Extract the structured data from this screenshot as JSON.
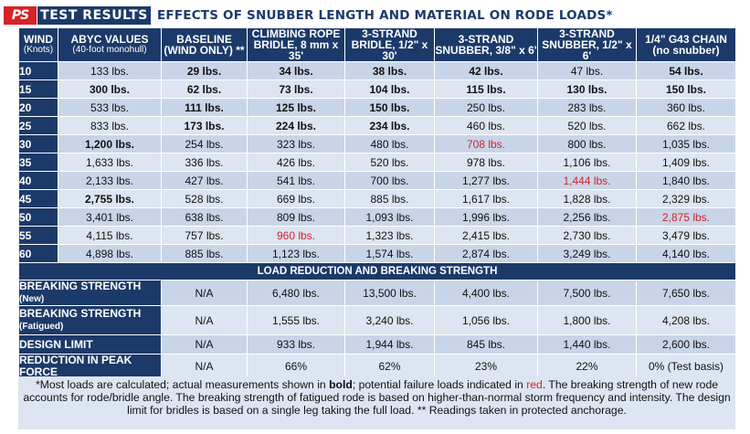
{
  "title": {
    "logo": "PS",
    "label": "TEST RESULTS",
    "text": "EFFECTS OF SNUBBER LENGTH AND MATERIAL ON RODE LOADS*"
  },
  "headers": [
    {
      "line1": "WIND",
      "line2": "(Knots)"
    },
    {
      "line1": "ABYC VALUES",
      "line2": "(40-foot monohull)"
    },
    {
      "line1": "BASELINE",
      "line2": "(WIND ONLY) **"
    },
    {
      "line1": "CLIMBING ROPE",
      "line2": "BRIDLE, 8 mm x 35'"
    },
    {
      "line1": "3-STRAND",
      "line2": "BRIDLE, 1/2\" x 30'"
    },
    {
      "line1": "3-STRAND",
      "line2": "SNUBBER, 3/8\" x 6'"
    },
    {
      "line1": "3-STRAND",
      "line2": "SNUBBER, 1/2\" x 6'"
    },
    {
      "line1": "1/4\" G43 CHAIN",
      "line2": "(no snubber)"
    }
  ],
  "rows": [
    {
      "wind": "10",
      "cells": [
        {
          "v": "133 lbs.",
          "s": ""
        },
        {
          "v": "29 lbs.",
          "s": "b"
        },
        {
          "v": "34 lbs.",
          "s": "b"
        },
        {
          "v": "38 lbs.",
          "s": "b"
        },
        {
          "v": "42 lbs.",
          "s": "b"
        },
        {
          "v": "47 lbs.",
          "s": ""
        },
        {
          "v": "54 lbs.",
          "s": "b"
        }
      ]
    },
    {
      "wind": "15",
      "cells": [
        {
          "v": "300 lbs.",
          "s": "b"
        },
        {
          "v": "62 lbs.",
          "s": "b"
        },
        {
          "v": "73 lbs.",
          "s": "b"
        },
        {
          "v": "104 lbs.",
          "s": "b"
        },
        {
          "v": "115 lbs.",
          "s": "b"
        },
        {
          "v": "130 lbs.",
          "s": "b"
        },
        {
          "v": "150 lbs.",
          "s": "b"
        }
      ]
    },
    {
      "wind": "20",
      "cells": [
        {
          "v": "533 lbs.",
          "s": ""
        },
        {
          "v": "111 lbs.",
          "s": "b"
        },
        {
          "v": "125 lbs.",
          "s": "b"
        },
        {
          "v": "150 lbs.",
          "s": "b"
        },
        {
          "v": "250 lbs.",
          "s": ""
        },
        {
          "v": "283 lbs.",
          "s": ""
        },
        {
          "v": "360 lbs.",
          "s": ""
        }
      ]
    },
    {
      "wind": "25",
      "cells": [
        {
          "v": "833 lbs.",
          "s": ""
        },
        {
          "v": "173 lbs.",
          "s": "b"
        },
        {
          "v": "224 lbs.",
          "s": "b"
        },
        {
          "v": "234 lbs.",
          "s": "b"
        },
        {
          "v": "460 lbs.",
          "s": ""
        },
        {
          "v": "520 lbs.",
          "s": ""
        },
        {
          "v": "662 lbs.",
          "s": ""
        }
      ]
    },
    {
      "wind": "30",
      "cells": [
        {
          "v": "1,200 lbs.",
          "s": "b"
        },
        {
          "v": "254 lbs.",
          "s": ""
        },
        {
          "v": "323 lbs.",
          "s": ""
        },
        {
          "v": "480 lbs.",
          "s": ""
        },
        {
          "v": "708 lbs.",
          "s": "red"
        },
        {
          "v": "800 lbs.",
          "s": ""
        },
        {
          "v": "1,035 lbs.",
          "s": ""
        }
      ]
    },
    {
      "wind": "35",
      "cells": [
        {
          "v": "1,633 lbs.",
          "s": ""
        },
        {
          "v": "336 lbs.",
          "s": ""
        },
        {
          "v": "426 lbs.",
          "s": ""
        },
        {
          "v": "520 lbs.",
          "s": ""
        },
        {
          "v": "978 lbs.",
          "s": ""
        },
        {
          "v": "1,106 lbs.",
          "s": ""
        },
        {
          "v": "1,409 lbs.",
          "s": ""
        }
      ]
    },
    {
      "wind": "40",
      "cells": [
        {
          "v": "2,133 lbs.",
          "s": ""
        },
        {
          "v": "427 lbs.",
          "s": ""
        },
        {
          "v": "541 lbs.",
          "s": ""
        },
        {
          "v": "700 lbs.",
          "s": ""
        },
        {
          "v": "1,277 lbs.",
          "s": ""
        },
        {
          "v": "1,444 lbs.",
          "s": "red"
        },
        {
          "v": "1,840 lbs.",
          "s": ""
        }
      ]
    },
    {
      "wind": "45",
      "cells": [
        {
          "v": "2,755 lbs.",
          "s": "b"
        },
        {
          "v": "528 lbs.",
          "s": ""
        },
        {
          "v": "669 lbs.",
          "s": ""
        },
        {
          "v": "885 lbs.",
          "s": ""
        },
        {
          "v": "1,617 lbs.",
          "s": ""
        },
        {
          "v": "1,828 lbs.",
          "s": ""
        },
        {
          "v": "2,329 lbs.",
          "s": ""
        }
      ]
    },
    {
      "wind": "50",
      "cells": [
        {
          "v": "3,401 lbs.",
          "s": ""
        },
        {
          "v": "638 lbs.",
          "s": ""
        },
        {
          "v": "809 lbs.",
          "s": ""
        },
        {
          "v": "1,093 lbs.",
          "s": ""
        },
        {
          "v": "1,996 lbs.",
          "s": ""
        },
        {
          "v": "2,256 lbs.",
          "s": ""
        },
        {
          "v": "2,875 lbs.",
          "s": "red"
        }
      ]
    },
    {
      "wind": "55",
      "cells": [
        {
          "v": "4,115 lbs.",
          "s": ""
        },
        {
          "v": "757 lbs.",
          "s": ""
        },
        {
          "v": "960 lbs.",
          "s": "red"
        },
        {
          "v": "1,323 lbs.",
          "s": ""
        },
        {
          "v": "2,415 lbs.",
          "s": ""
        },
        {
          "v": "2,730 lbs.",
          "s": ""
        },
        {
          "v": "3,479 lbs.",
          "s": ""
        }
      ]
    },
    {
      "wind": "60",
      "cells": [
        {
          "v": "4,898 lbs.",
          "s": ""
        },
        {
          "v": "885 lbs.",
          "s": ""
        },
        {
          "v": "1,123 lbs.",
          "s": ""
        },
        {
          "v": "1,574 lbs.",
          "s": ""
        },
        {
          "v": "2,874 lbs.",
          "s": ""
        },
        {
          "v": "3,249 lbs.",
          "s": ""
        },
        {
          "v": "4,140 lbs.",
          "s": ""
        }
      ]
    }
  ],
  "section_title": "LOAD REDUCTION AND BREAKING STRENGTH",
  "strength_rows": [
    {
      "label": "BREAKING STRENGTH",
      "sub": "(New)",
      "tall": false,
      "cells": [
        "N/A",
        "6,480 lbs.",
        "13,500 lbs.",
        "4,400 lbs.",
        "7,500 lbs.",
        "7,650 lbs."
      ]
    },
    {
      "label": "BREAKING STRENGTH",
      "sub": "(Fatigued)",
      "tall": true,
      "cells": [
        "N/A",
        "1,555 lbs.",
        "3,240 lbs.",
        "1,056 lbs.",
        "1,800 lbs.",
        "4,208 lbs."
      ]
    },
    {
      "label": "DESIGN LIMIT",
      "sub": "",
      "tall": false,
      "cells": [
        "N/A",
        "933 lbs.",
        "1,944 lbs.",
        "845 lbs.",
        "1,440 lbs.",
        "2,600 lbs."
      ]
    },
    {
      "label": "REDUCTION IN PEAK FORCE",
      "sub": "",
      "tall": false,
      "cells": [
        "N/A",
        "66%",
        "62%",
        "23%",
        "22%",
        "0% (Test basis)"
      ]
    }
  ],
  "notes": {
    "part1": "*Most loads are calculated; actual measurements shown in ",
    "bold": "bold",
    "part2": "; potential failure loads indicated in ",
    "red": "red",
    "part3": ". The breaking strength of new rode accounts for rode/bridle angle. The breaking strength of fatigued rode is based on higher-than-normal storm frequency and intensity. The design limit for bridles is based on a single leg taking the full load. ** Readings taken in protected anchorage."
  },
  "colors": {
    "header_navy": "#1c3a69",
    "row_dark": "#c8d5e8",
    "row_light": "#dce5f1",
    "failure_red": "#d62128"
  }
}
